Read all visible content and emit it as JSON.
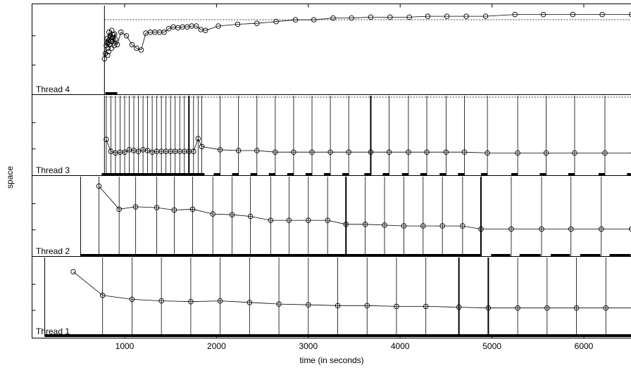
{
  "chart_data": {
    "type": "line",
    "title": "",
    "xlabel": "time (in seconds)",
    "ylabel": "space",
    "xlim": [
      0,
      6600
    ],
    "xticks": [
      {
        "value": 1000,
        "label": "1000"
      },
      {
        "value": 2000,
        "label": "2000"
      },
      {
        "value": 3000,
        "label": "3000"
      },
      {
        "value": 4000,
        "label": "4000"
      },
      {
        "value": 5000,
        "label": "5000"
      },
      {
        "value": 6000,
        "label": "6000"
      }
    ],
    "grid": false,
    "legend": "none",
    "series": [
      {
        "name": "Thread 1",
        "start": 130,
        "points": [
          {
            "x": 440,
            "y": 0.82
          },
          {
            "x": 760,
            "y": 0.52
          },
          {
            "x": 1080,
            "y": 0.47
          },
          {
            "x": 1400,
            "y": 0.45
          },
          {
            "x": 1720,
            "y": 0.44
          },
          {
            "x": 2040,
            "y": 0.45
          },
          {
            "x": 2360,
            "y": 0.43
          },
          {
            "x": 2680,
            "y": 0.41
          },
          {
            "x": 3000,
            "y": 0.4
          },
          {
            "x": 3320,
            "y": 0.39
          },
          {
            "x": 3640,
            "y": 0.39
          },
          {
            "x": 3960,
            "y": 0.38
          },
          {
            "x": 4280,
            "y": 0.38
          },
          {
            "x": 4640,
            "y": 0.37
          },
          {
            "x": 4960,
            "y": 0.36
          },
          {
            "x": 5280,
            "y": 0.36
          },
          {
            "x": 5600,
            "y": 0.36
          },
          {
            "x": 5920,
            "y": 0.36
          },
          {
            "x": 6240,
            "y": 0.36
          },
          {
            "x": 6560,
            "y": 0.36
          }
        ],
        "events": [
          760,
          1080,
          1400,
          1720,
          2040,
          2360,
          2680,
          3000,
          3320,
          3640,
          3960,
          4280,
          4640,
          4960,
          5280,
          5600,
          5920,
          6240,
          6560
        ],
        "bold_events": [
          4640,
          4960
        ],
        "activity": [
          [
            130,
            6600
          ]
        ]
      },
      {
        "name": "Thread 2",
        "start": 520,
        "points": [
          {
            "x": 720,
            "y": 0.88
          },
          {
            "x": 940,
            "y": 0.59
          },
          {
            "x": 1120,
            "y": 0.62
          },
          {
            "x": 1350,
            "y": 0.61
          },
          {
            "x": 1540,
            "y": 0.58
          },
          {
            "x": 1740,
            "y": 0.59
          },
          {
            "x": 1960,
            "y": 0.53
          },
          {
            "x": 2170,
            "y": 0.52
          },
          {
            "x": 2370,
            "y": 0.5
          },
          {
            "x": 2590,
            "y": 0.45
          },
          {
            "x": 2790,
            "y": 0.45
          },
          {
            "x": 3000,
            "y": 0.45
          },
          {
            "x": 3210,
            "y": 0.45
          },
          {
            "x": 3410,
            "y": 0.4
          },
          {
            "x": 3620,
            "y": 0.4
          },
          {
            "x": 3830,
            "y": 0.39
          },
          {
            "x": 4040,
            "y": 0.38
          },
          {
            "x": 4250,
            "y": 0.38
          },
          {
            "x": 4460,
            "y": 0.38
          },
          {
            "x": 4680,
            "y": 0.38
          },
          {
            "x": 4880,
            "y": 0.34
          },
          {
            "x": 5210,
            "y": 0.34
          },
          {
            "x": 5540,
            "y": 0.34
          },
          {
            "x": 5860,
            "y": 0.34
          },
          {
            "x": 6190,
            "y": 0.34
          },
          {
            "x": 6520,
            "y": 0.34
          }
        ],
        "events": [
          720,
          940,
          1120,
          1350,
          1540,
          1740,
          1960,
          2170,
          2370,
          2590,
          2790,
          3000,
          3210,
          3410,
          3620,
          3830,
          4040,
          4250,
          4460,
          4680,
          4880,
          5210,
          5540,
          5860,
          6190,
          6520
        ],
        "bold_events": [
          3410,
          4880
        ],
        "activity": [
          [
            520,
            4880
          ],
          [
            4990,
            5200
          ],
          [
            5300,
            5530
          ],
          [
            5640,
            5850
          ],
          [
            5960,
            6180
          ],
          [
            6280,
            6510
          ]
        ]
      },
      {
        "name": "Thread 3",
        "start": 780,
        "points": [
          {
            "x": 800,
            "y": 0.45
          },
          {
            "x": 850,
            "y": 0.3
          },
          {
            "x": 900,
            "y": 0.28
          },
          {
            "x": 950,
            "y": 0.29
          },
          {
            "x": 1000,
            "y": 0.29
          },
          {
            "x": 1050,
            "y": 0.32
          },
          {
            "x": 1100,
            "y": 0.31
          },
          {
            "x": 1150,
            "y": 0.3
          },
          {
            "x": 1200,
            "y": 0.32
          },
          {
            "x": 1250,
            "y": 0.31
          },
          {
            "x": 1300,
            "y": 0.29
          },
          {
            "x": 1350,
            "y": 0.3
          },
          {
            "x": 1400,
            "y": 0.3
          },
          {
            "x": 1450,
            "y": 0.3
          },
          {
            "x": 1500,
            "y": 0.3
          },
          {
            "x": 1550,
            "y": 0.3
          },
          {
            "x": 1600,
            "y": 0.3
          },
          {
            "x": 1650,
            "y": 0.3
          },
          {
            "x": 1700,
            "y": 0.3
          },
          {
            "x": 1750,
            "y": 0.3
          },
          {
            "x": 1800,
            "y": 0.46
          },
          {
            "x": 1840,
            "y": 0.36
          },
          {
            "x": 2040,
            "y": 0.32
          },
          {
            "x": 2240,
            "y": 0.31
          },
          {
            "x": 2440,
            "y": 0.31
          },
          {
            "x": 2640,
            "y": 0.29
          },
          {
            "x": 2840,
            "y": 0.29
          },
          {
            "x": 3040,
            "y": 0.29
          },
          {
            "x": 3240,
            "y": 0.29
          },
          {
            "x": 3440,
            "y": 0.29
          },
          {
            "x": 3680,
            "y": 0.29
          },
          {
            "x": 3880,
            "y": 0.29
          },
          {
            "x": 4090,
            "y": 0.29
          },
          {
            "x": 4290,
            "y": 0.29
          },
          {
            "x": 4500,
            "y": 0.29
          },
          {
            "x": 4700,
            "y": 0.29
          },
          {
            "x": 4950,
            "y": 0.28
          },
          {
            "x": 5280,
            "y": 0.28
          },
          {
            "x": 5590,
            "y": 0.28
          },
          {
            "x": 5900,
            "y": 0.28
          },
          {
            "x": 6230,
            "y": 0.28
          },
          {
            "x": 6540,
            "y": 0.28
          }
        ],
        "events": [
          800,
          850,
          900,
          950,
          1000,
          1050,
          1100,
          1150,
          1200,
          1250,
          1300,
          1350,
          1400,
          1450,
          1500,
          1550,
          1600,
          1650,
          1700,
          1750,
          1800,
          1840,
          2040,
          2240,
          2440,
          2640,
          2840,
          3040,
          3240,
          3440,
          3680,
          3880,
          4090,
          4290,
          4500,
          4700,
          4950,
          5280,
          5590,
          5900,
          6230,
          6540
        ],
        "bold_events": [
          1700,
          3680
        ],
        "activity": [
          [
            750,
            1870
          ],
          [
            1970,
            2040
          ],
          [
            2170,
            2240
          ],
          [
            2370,
            2440
          ],
          [
            2570,
            2640
          ],
          [
            2770,
            2840
          ],
          [
            2970,
            3040
          ],
          [
            3170,
            3240
          ],
          [
            3370,
            3440
          ],
          [
            3610,
            3680
          ],
          [
            3810,
            3880
          ],
          [
            4020,
            4090
          ],
          [
            4220,
            4290
          ],
          [
            4430,
            4500
          ],
          [
            4630,
            4700
          ],
          [
            4880,
            4950
          ],
          [
            5210,
            5280
          ],
          [
            5520,
            5590
          ],
          [
            5830,
            5900
          ],
          [
            6160,
            6230
          ],
          [
            6470,
            6540
          ]
        ]
      },
      {
        "name": "Thread 4",
        "start": 780,
        "box": [
          780,
          6600
        ],
        "points": [
          {
            "x": 780,
            "y": 0.4
          },
          {
            "x": 790,
            "y": 0.46
          },
          {
            "x": 800,
            "y": 0.55
          },
          {
            "x": 810,
            "y": 0.63
          },
          {
            "x": 820,
            "y": 0.58
          },
          {
            "x": 830,
            "y": 0.7
          },
          {
            "x": 840,
            "y": 0.66
          },
          {
            "x": 850,
            "y": 0.6
          },
          {
            "x": 860,
            "y": 0.72
          },
          {
            "x": 870,
            "y": 0.64
          },
          {
            "x": 880,
            "y": 0.58
          },
          {
            "x": 890,
            "y": 0.68
          },
          {
            "x": 900,
            "y": 0.62
          },
          {
            "x": 920,
            "y": 0.56
          },
          {
            "x": 960,
            "y": 0.7
          },
          {
            "x": 1020,
            "y": 0.66
          },
          {
            "x": 1080,
            "y": 0.56
          },
          {
            "x": 1130,
            "y": 0.52
          },
          {
            "x": 1180,
            "y": 0.5
          },
          {
            "x": 1230,
            "y": 0.69
          },
          {
            "x": 1280,
            "y": 0.7
          },
          {
            "x": 1330,
            "y": 0.7
          },
          {
            "x": 1380,
            "y": 0.7
          },
          {
            "x": 1430,
            "y": 0.7
          },
          {
            "x": 1480,
            "y": 0.74
          },
          {
            "x": 1530,
            "y": 0.76
          },
          {
            "x": 1580,
            "y": 0.75
          },
          {
            "x": 1630,
            "y": 0.76
          },
          {
            "x": 1680,
            "y": 0.76
          },
          {
            "x": 1730,
            "y": 0.77
          },
          {
            "x": 1780,
            "y": 0.77
          },
          {
            "x": 1830,
            "y": 0.73
          },
          {
            "x": 1880,
            "y": 0.72
          },
          {
            "x": 2020,
            "y": 0.77
          },
          {
            "x": 2230,
            "y": 0.79
          },
          {
            "x": 2440,
            "y": 0.8
          },
          {
            "x": 2650,
            "y": 0.82
          },
          {
            "x": 2860,
            "y": 0.84
          },
          {
            "x": 3060,
            "y": 0.84
          },
          {
            "x": 3270,
            "y": 0.86
          },
          {
            "x": 3470,
            "y": 0.86
          },
          {
            "x": 3680,
            "y": 0.87
          },
          {
            "x": 3890,
            "y": 0.87
          },
          {
            "x": 4100,
            "y": 0.87
          },
          {
            "x": 4300,
            "y": 0.88
          },
          {
            "x": 4510,
            "y": 0.88
          },
          {
            "x": 4720,
            "y": 0.88
          },
          {
            "x": 4930,
            "y": 0.88
          },
          {
            "x": 5250,
            "y": 0.9
          },
          {
            "x": 5560,
            "y": 0.9
          },
          {
            "x": 5880,
            "y": 0.9
          },
          {
            "x": 6200,
            "y": 0.9
          },
          {
            "x": 6520,
            "y": 0.9
          }
        ],
        "extra_markers": [
          {
            "x": 808,
            "y": 0.58
          },
          {
            "x": 818,
            "y": 0.52
          },
          {
            "x": 826,
            "y": 0.61
          },
          {
            "x": 836,
            "y": 0.56
          },
          {
            "x": 846,
            "y": 0.64
          },
          {
            "x": 856,
            "y": 0.52
          },
          {
            "x": 866,
            "y": 0.6
          },
          {
            "x": 876,
            "y": 0.67
          },
          {
            "x": 886,
            "y": 0.55
          },
          {
            "x": 815,
            "y": 0.44
          },
          {
            "x": 825,
            "y": 0.48
          }
        ],
        "events": [],
        "bold_events": [],
        "activity": [
          [
            790,
            920
          ]
        ]
      }
    ]
  }
}
